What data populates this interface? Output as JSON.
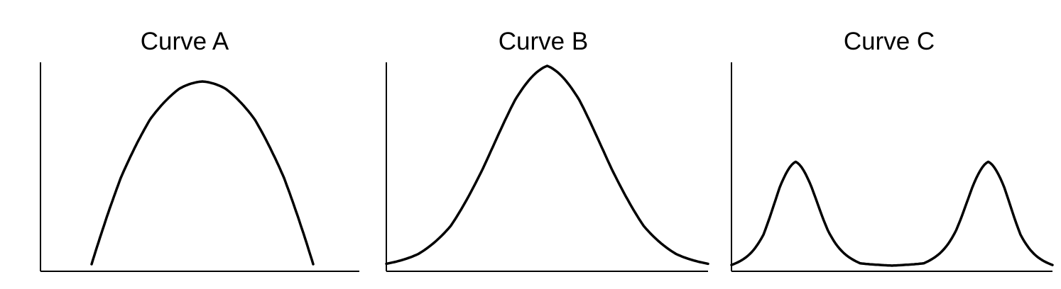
{
  "chart_data": [
    {
      "type": "line",
      "title": "Curve A",
      "xlabel": "",
      "ylabel": "",
      "grid": false,
      "shape": "inverted-parabola",
      "xlim": [
        0,
        1
      ],
      "ylim": [
        0,
        1
      ],
      "series": [
        {
          "x": [
            0.16,
            0.25,
            0.34,
            0.43,
            0.5,
            0.57,
            0.66,
            0.75,
            0.84
          ],
          "values": [
            0.0,
            0.51,
            0.83,
            0.97,
            1.0,
            0.97,
            0.83,
            0.51,
            0.0
          ]
        }
      ]
    },
    {
      "type": "line",
      "title": "Curve B",
      "xlabel": "",
      "ylabel": "",
      "grid": false,
      "shape": "single-gaussian",
      "xlim": [
        0,
        1
      ],
      "ylim": [
        0,
        1
      ],
      "series": [
        {
          "x": [
            0.0,
            0.1,
            0.2,
            0.3,
            0.4,
            0.5,
            0.6,
            0.7,
            0.8,
            0.9,
            1.0
          ],
          "values": [
            0.0,
            0.05,
            0.17,
            0.45,
            0.8,
            1.0,
            0.8,
            0.45,
            0.17,
            0.05,
            0.0
          ]
        }
      ]
    },
    {
      "type": "line",
      "title": "Curve C",
      "xlabel": "",
      "ylabel": "",
      "grid": false,
      "shape": "bimodal",
      "xlim": [
        0,
        1
      ],
      "ylim": [
        0,
        1
      ],
      "series": [
        {
          "x": [
            0.0,
            0.1,
            0.15,
            0.2,
            0.25,
            0.3,
            0.4,
            0.5,
            0.6,
            0.7,
            0.75,
            0.8,
            0.85,
            0.9,
            1.0
          ],
          "values": [
            0.0,
            0.15,
            0.4,
            0.52,
            0.4,
            0.22,
            0.03,
            0.0,
            0.03,
            0.22,
            0.4,
            0.52,
            0.4,
            0.15,
            0.0
          ]
        }
      ]
    }
  ]
}
